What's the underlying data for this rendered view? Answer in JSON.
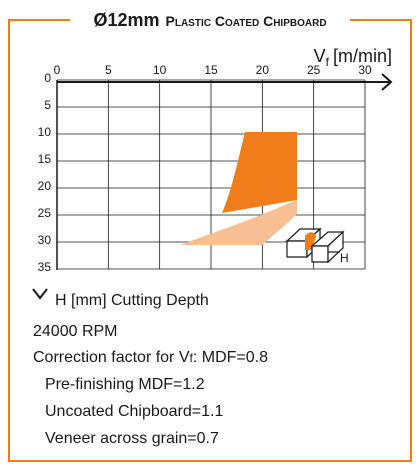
{
  "chart_data": {
    "type": "region",
    "title": "Ø12mm",
    "subtitle": "Plastic Coated Chipboard",
    "xlabel": {
      "symbol": "V",
      "subscript": "f",
      "unit": "[m/min]"
    },
    "ylabel": "H [mm] Cutting Depth",
    "xlim": [
      0,
      30
    ],
    "xticks": [
      0,
      5,
      10,
      15,
      20,
      25,
      30
    ],
    "ylim": [
      0,
      35
    ],
    "yticks": [
      0,
      5,
      10,
      15,
      20,
      25,
      30,
      35
    ],
    "grid": true,
    "inset_label": "H"
  },
  "notes": {
    "rpm": "24000 RPM",
    "correction": {
      "prefix": "Correction factor for V",
      "subscript": "f",
      "suffix": ": MDF=0.8"
    },
    "lines": [
      "Pre-finishing MDF=1.2",
      "Uncoated Chipboard=1.1",
      "Veneer across grain=0.7"
    ]
  }
}
